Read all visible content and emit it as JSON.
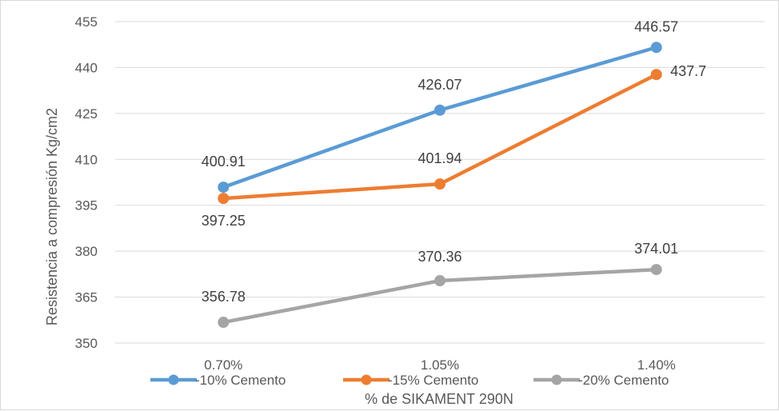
{
  "chart_data": {
    "type": "line",
    "categories": [
      "0.70%",
      "1.05%",
      "1.40%"
    ],
    "series": [
      {
        "name": "-10% Cemento",
        "values": [
          400.91,
          426.07,
          446.57
        ],
        "color": "#5b9bd5",
        "labels": [
          "400.91",
          "426.07",
          "446.57"
        ]
      },
      {
        "name": "-15% Cemento",
        "values": [
          397.25,
          401.94,
          437.7
        ],
        "color": "#ed7d31",
        "labels": [
          "397.25",
          "401.94",
          "437.7"
        ]
      },
      {
        "name": "-20% Cemento",
        "values": [
          356.78,
          370.36,
          374.01
        ],
        "color": "#a5a5a5",
        "labels": [
          "356.78",
          "370.36",
          "374.01"
        ]
      }
    ],
    "title": "",
    "xlabel": "% de SIKAMENT 290N",
    "ylabel": "Resistencia a compresión Kg/cm2",
    "ylim": [
      350,
      455
    ],
    "yticks": [
      "350",
      "365",
      "380",
      "395",
      "410",
      "425",
      "440",
      "455"
    ],
    "grid": true,
    "legend": "bottom"
  }
}
